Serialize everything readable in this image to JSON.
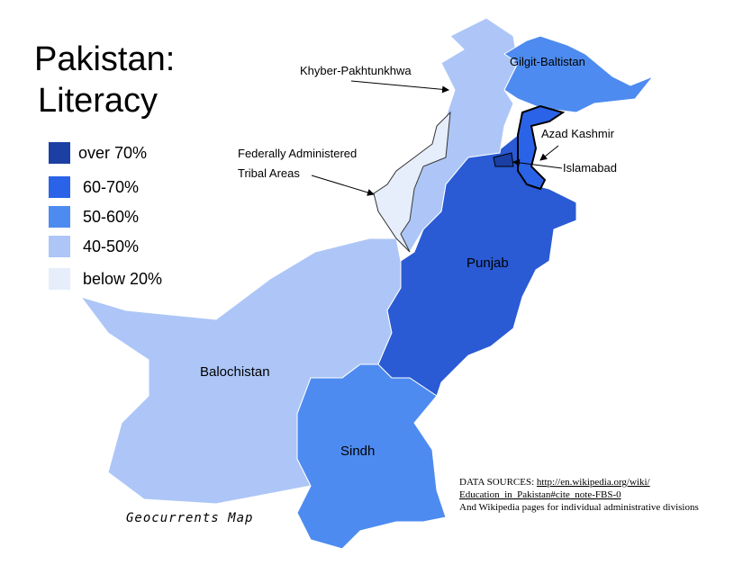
{
  "header": {
    "title_lines": [
      "Pakistan:",
      "Literacy"
    ]
  },
  "legend": [
    {
      "label": "over 70%",
      "color": "#1b3fa3"
    },
    {
      "label": "60-70%",
      "color": "#2a63e8"
    },
    {
      "label": "50-60%",
      "color": "#4d8bf0"
    },
    {
      "label": "40-50%",
      "color": "#adc6f7"
    },
    {
      "label": "below 20%",
      "color": "#e6eefc"
    }
  ],
  "regions": [
    {
      "label": "Balochistan",
      "color": "#adc6f7"
    },
    {
      "label": "Sindh",
      "color": "#4d8bf0"
    },
    {
      "label": "Punjab",
      "color": "#2a5ad4"
    },
    {
      "label": "Khyber-Pakhtunkhwa",
      "color": "#adc6f7"
    },
    {
      "label_lines": [
        "Federally Administered",
        "Tribal Areas"
      ],
      "color": "#e6eefc"
    },
    {
      "label": "Gilgit-Baltistan",
      "color": "#4d8bf0"
    },
    {
      "label": "Azad Kashmir",
      "color": "#2a63e8"
    },
    {
      "label": "Islamabad",
      "color": "#1b3fa3"
    }
  ],
  "sources": {
    "prefix": "DATA SOURCES: ",
    "link_line1": "http://en.wikipedia.org/wiki/",
    "link_line2": "Education_in_Pakistan#cite_note-FBS-0",
    "note": "And  Wikipedia pages for individual administrative divisions"
  },
  "credit": "Geocurrents Map"
}
